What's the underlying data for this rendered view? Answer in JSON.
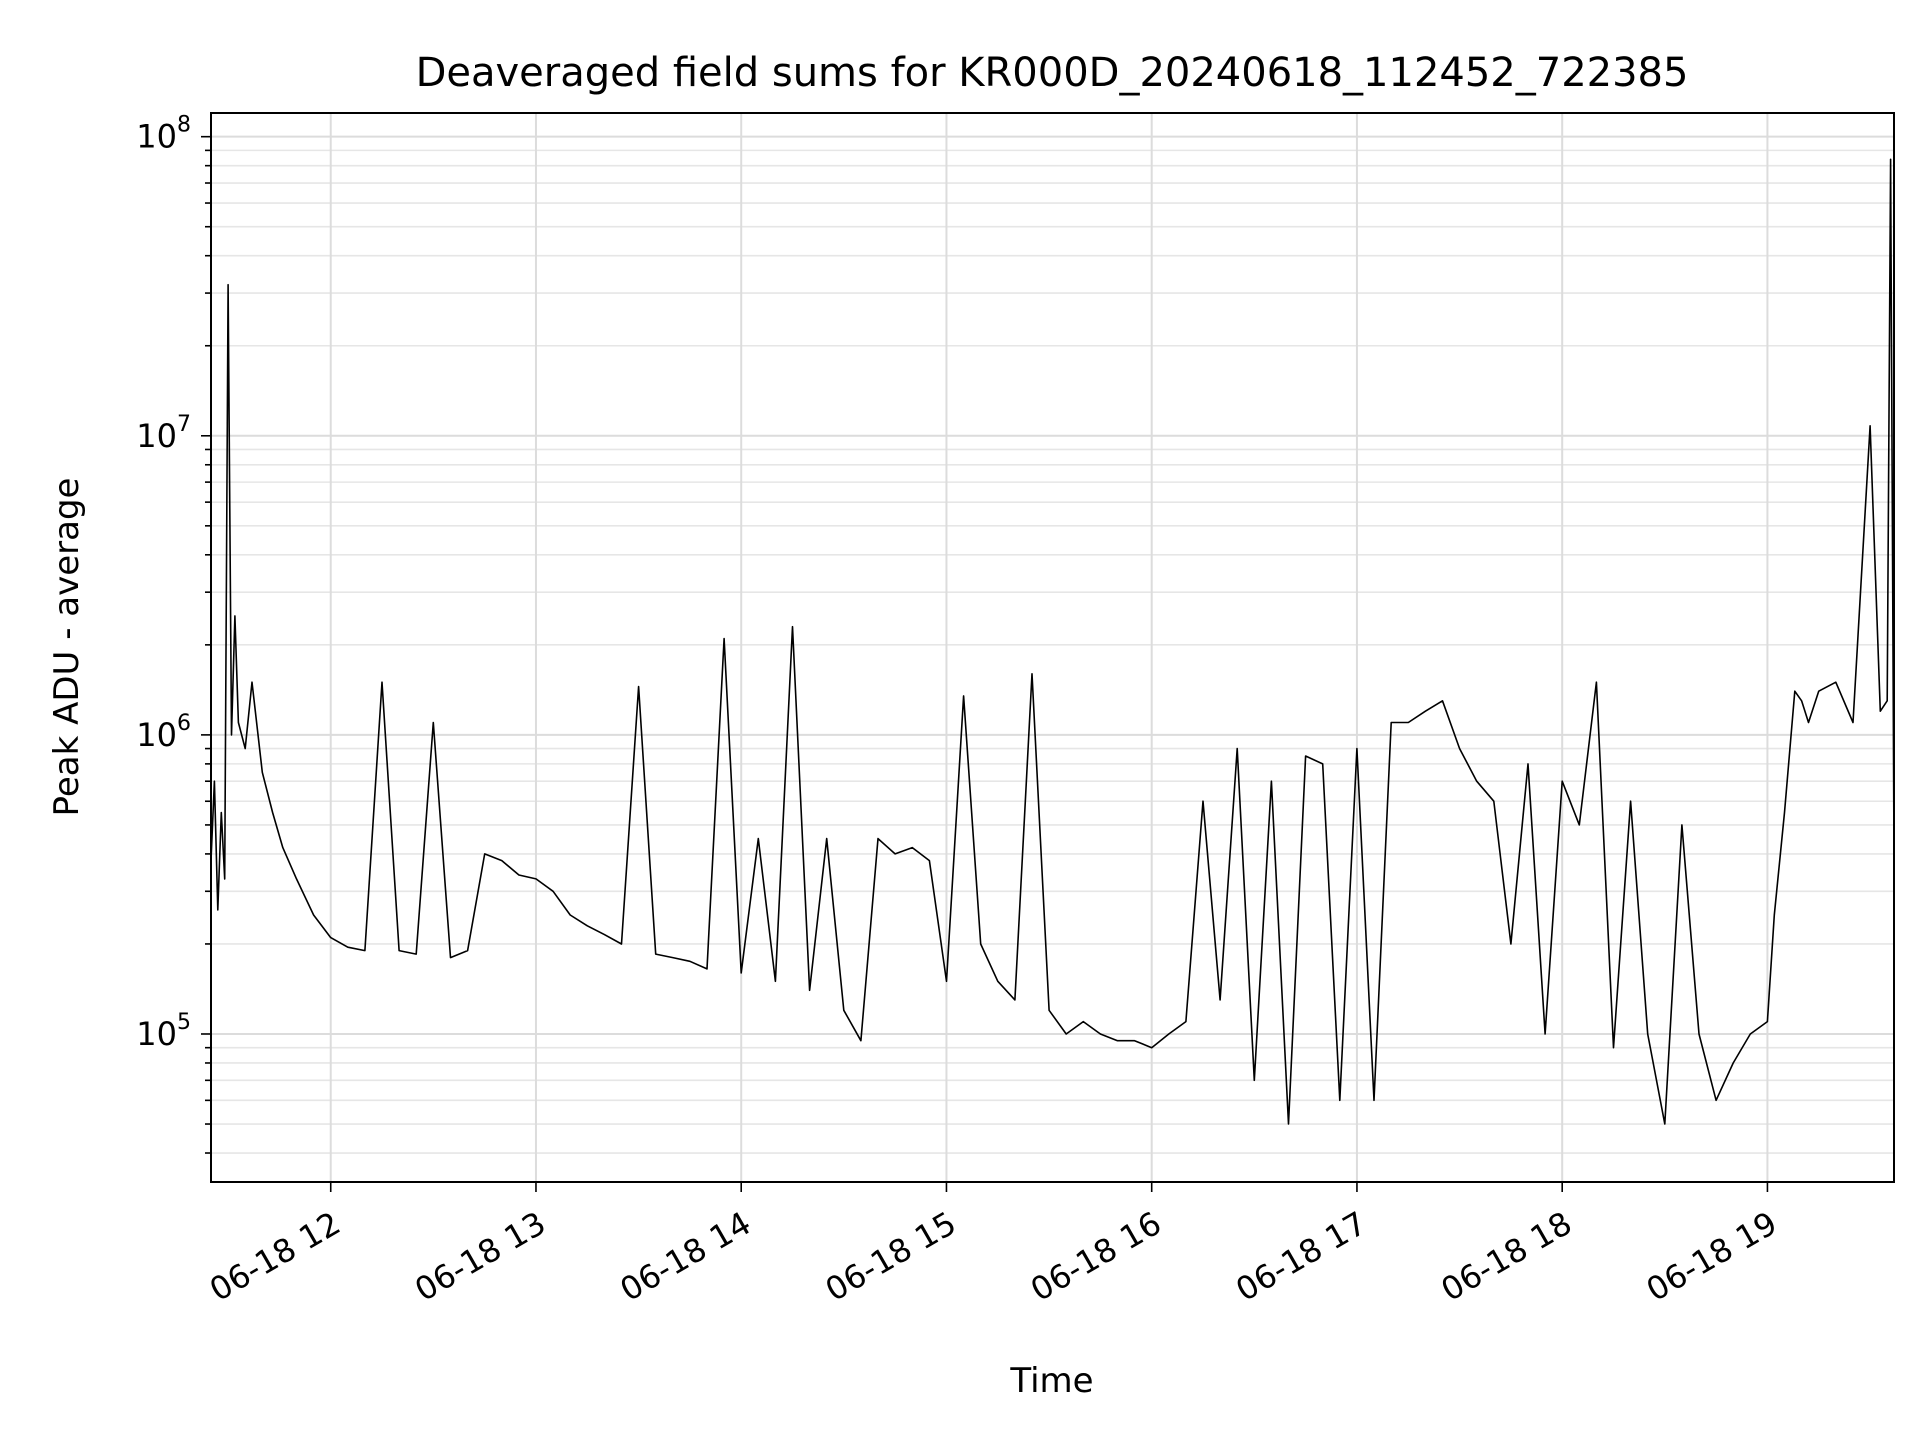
{
  "chart_data": {
    "type": "line",
    "title": "Deaveraged field sums for KR000D_20240618_112452_722385",
    "xlabel": "Time",
    "ylabel": "Peak ADU - average",
    "yscale": "log",
    "grid": true,
    "line_color": "#000000",
    "xlim": [
      "2024-06-18 11:25",
      "2024-06-18 19:37"
    ],
    "ylim": [
      32000,
      120000000
    ],
    "x_ticks": [
      "06-18 12",
      "06-18 13",
      "06-18 14",
      "06-18 15",
      "06-18 16",
      "06-18 17",
      "06-18 18",
      "06-18 19"
    ],
    "y_ticks": [
      {
        "base": "10",
        "exp": "5"
      },
      {
        "base": "10",
        "exp": "6"
      },
      {
        "base": "10",
        "exp": "7"
      },
      {
        "base": "10",
        "exp": "8"
      }
    ],
    "series": [
      {
        "x": [
          "11:25",
          "11:26",
          "11:27",
          "11:28",
          "11:29",
          "11:30",
          "11:31",
          "11:32",
          "11:33",
          "11:35",
          "11:37",
          "11:40",
          "11:43",
          "11:46",
          "11:50",
          "11:55",
          "12:00",
          "12:05",
          "12:10",
          "12:15",
          "12:20",
          "12:25",
          "12:30",
          "12:35",
          "12:40",
          "12:45",
          "12:50",
          "12:55",
          "13:00",
          "13:05",
          "13:10",
          "13:15",
          "13:20",
          "13:25",
          "13:30",
          "13:35",
          "13:40",
          "13:45",
          "13:50",
          "13:55",
          "14:00",
          "14:05",
          "14:10",
          "14:15",
          "14:20",
          "14:25",
          "14:30",
          "14:35",
          "14:40",
          "14:45",
          "14:50",
          "14:55",
          "15:00",
          "15:05",
          "15:10",
          "15:15",
          "15:20",
          "15:25",
          "15:30",
          "15:35",
          "15:40",
          "15:45",
          "15:50",
          "15:55",
          "16:00",
          "16:05",
          "16:10",
          "16:15",
          "16:20",
          "16:25",
          "16:30",
          "16:35",
          "16:40",
          "16:45",
          "16:50",
          "16:55",
          "17:00",
          "17:05",
          "17:10",
          "17:15",
          "17:20",
          "17:25",
          "17:30",
          "17:35",
          "17:40",
          "17:45",
          "17:50",
          "17:55",
          "18:00",
          "18:05",
          "18:10",
          "18:15",
          "18:20",
          "18:25",
          "18:30",
          "18:35",
          "18:40",
          "18:45",
          "18:50",
          "18:55",
          "19:00",
          "19:02",
          "19:05",
          "19:08",
          "19:10",
          "19:12",
          "19:15",
          "19:20",
          "19:25",
          "19:30",
          "19:33",
          "19:35",
          "19:36",
          "19:37"
        ],
        "y": [
          380000,
          700000,
          260000,
          550000,
          330000,
          32000000,
          1000000,
          2500000,
          1100000,
          900000,
          1500000,
          750000,
          550000,
          420000,
          330000,
          250000,
          210000,
          195000,
          190000,
          1500000,
          190000,
          185000,
          1100000,
          180000,
          190000,
          400000,
          380000,
          340000,
          330000,
          300000,
          250000,
          230000,
          215000,
          200000,
          1450000,
          185000,
          180000,
          175000,
          165000,
          2100000,
          160000,
          450000,
          150000,
          2300000,
          140000,
          450000,
          120000,
          95000,
          450000,
          400000,
          420000,
          380000,
          150000,
          1350000,
          200000,
          150000,
          130000,
          1600000,
          120000,
          100000,
          110000,
          100000,
          95000,
          95000,
          90000,
          100000,
          110000,
          600000,
          130000,
          900000,
          70000,
          700000,
          50000,
          850000,
          800000,
          60000,
          900000,
          60000,
          1100000,
          1100000,
          1200000,
          1300000,
          900000,
          700000,
          600000,
          200000,
          800000,
          100000,
          700000,
          500000,
          1500000,
          90000,
          600000,
          100000,
          50000,
          500000,
          100000,
          60000,
          80000,
          100000,
          110000,
          250000,
          550000,
          1400000,
          1300000,
          1100000,
          1400000,
          1500000,
          1100000,
          10800000,
          1200000,
          1300000,
          84000000,
          400000
        ]
      }
    ]
  }
}
